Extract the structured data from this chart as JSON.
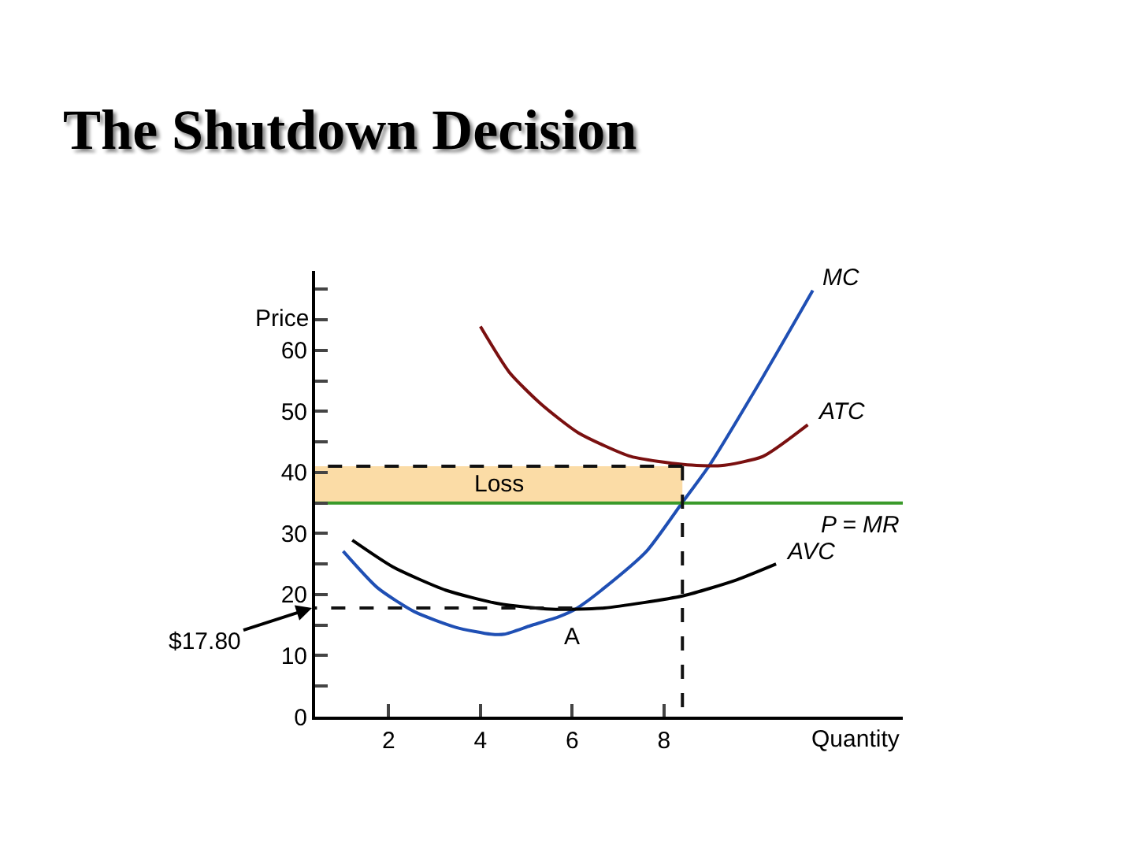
{
  "chart_data": {
    "type": "line",
    "title": "The Shutdown Decision",
    "xlabel": "Quantity",
    "ylabel": "Price",
    "xlim": [
      0.4,
      13.2
    ],
    "ylim": [
      0,
      73
    ],
    "xticks": [
      2,
      4,
      6,
      8
    ],
    "yticks": [
      0,
      {
        "value": 5,
        "label": null
      },
      10,
      {
        "value": 15,
        "label": null
      },
      20,
      {
        "value": 25,
        "label": null
      },
      30,
      {
        "value": 35,
        "label": null
      },
      40,
      {
        "value": 45,
        "label": null
      },
      50,
      {
        "value": 55,
        "label": null
      },
      60,
      {
        "value": 65,
        "label": null
      },
      {
        "value": 70,
        "label": null
      }
    ],
    "grid": false,
    "legend": false,
    "marker": "none",
    "line_style": "solid",
    "series": [
      {
        "name": "MC",
        "color": "#1f4fb4",
        "x": [
          1.01,
          1.76,
          2.56,
          3.48,
          4.23,
          4.52,
          5.09,
          5.72,
          6.07,
          6.7,
          7.62,
          8.42,
          9.0,
          10.15,
          11.24
        ],
        "values": [
          27.1,
          21.1,
          17.2,
          14.6,
          13.5,
          13.5,
          14.9,
          16.4,
          17.6,
          21.1,
          27.1,
          35.3,
          41.3,
          55.6,
          69.8
        ]
      },
      {
        "name": "ATC",
        "color": "#7a1010",
        "x": [
          4.0,
          4.63,
          5.32,
          6.13,
          7.28,
          8.42,
          9.23,
          10.15,
          11.13
        ],
        "values": [
          63.9,
          56.4,
          51.2,
          46.5,
          42.6,
          41.3,
          41.1,
          42.6,
          47.8
        ]
      },
      {
        "name": "AVC",
        "color": "#000000",
        "x": [
          1.21,
          2.1,
          3.25,
          4.4,
          5.55,
          6.7,
          8.42,
          9.58,
          10.44
        ],
        "values": [
          28.9,
          24.5,
          20.7,
          18.5,
          17.6,
          17.8,
          19.8,
          22.4,
          25.0
        ]
      },
      {
        "name": "P = MR",
        "color": "#3a9a2a",
        "x": [
          0.4,
          13.2
        ],
        "values": [
          35,
          35
        ]
      },
      {
        "color": "#111111",
        "line_style": "dashed",
        "x": [
          8.4,
          0.4
        ],
        "values": [
          41,
          41
        ]
      },
      {
        "color": "#111111",
        "line_style": "dashed",
        "x": [
          8.4,
          8.4
        ],
        "values": [
          41,
          0
        ]
      },
      {
        "color": "#111111",
        "line_style": "dashed",
        "x": [
          6.0,
          0.4
        ],
        "values": [
          17.8,
          17.8
        ]
      }
    ],
    "bands": [
      {
        "axis": "y",
        "from": 35,
        "to": 41,
        "label": "Loss",
        "color": "#fbdca6"
      }
    ],
    "annotations": [
      {
        "text": "$17.80",
        "x": 0.4,
        "y": 17.8
      },
      {
        "text": "A",
        "x": 6.0,
        "y": 17.8
      }
    ]
  }
}
